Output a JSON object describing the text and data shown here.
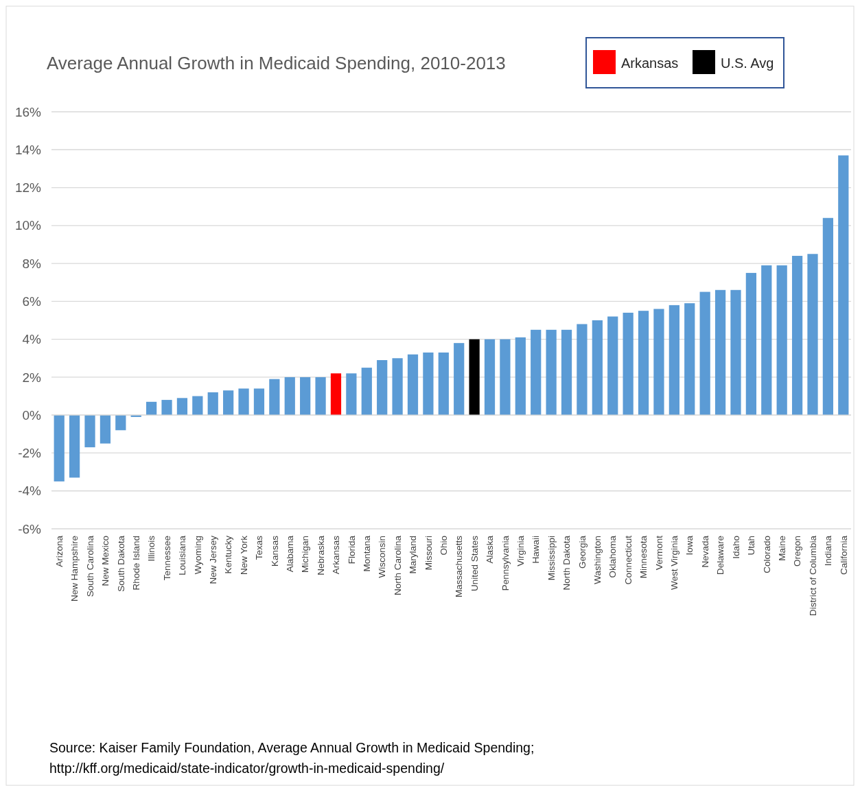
{
  "chart_data": {
    "type": "bar",
    "title": "Average Annual Growth in Medicaid Spending, 2010-2013",
    "categories": [
      "Arizona",
      "New Hampshire",
      "South Carolina",
      "New Mexico",
      "South Dakota",
      "Rhode Island",
      "Illinois",
      "Tennessee",
      "Louisiana",
      "Wyoming",
      "New Jersey",
      "Kentucky",
      "New York",
      "Texas",
      "Kansas",
      "Alabama",
      "Michigan",
      "Nebraska",
      "Arkansas",
      "Florida",
      "Montana",
      "Wisconsin",
      "North Carolina",
      "Maryland",
      "Missouri",
      "Ohio",
      "Massachusetts",
      "United States",
      "Alaska",
      "Pennsylvania",
      "Virginia",
      "Hawaii",
      "Mississippi",
      "North Dakota",
      "Georgia",
      "Washington",
      "Oklahoma",
      "Connecticut",
      "Minnesota",
      "Vermont",
      "West Virginia",
      "Iowa",
      "Nevada",
      "Delaware",
      "Idaho",
      "Utah",
      "Colorado",
      "Maine",
      "Oregon",
      "District of Columbia",
      "Indiana",
      "California"
    ],
    "series": [
      {
        "color": "#5b9bd5",
        "values": [
          -3.5,
          -3.3,
          -1.7,
          -1.5,
          -0.8,
          -0.1,
          0.7,
          0.8,
          0.9,
          1.0,
          1.2,
          1.3,
          1.4,
          1.4,
          1.9,
          2.0,
          2.0,
          2.0,
          null,
          2.2,
          2.5,
          2.9,
          3.0,
          3.2,
          3.3,
          3.3,
          3.8,
          null,
          4.0,
          4.0,
          4.1,
          4.5,
          4.5,
          4.5,
          4.8,
          5.0,
          5.2,
          5.4,
          5.5,
          5.6,
          5.8,
          5.9,
          6.5,
          6.6,
          6.6,
          7.5,
          7.9,
          7.9,
          8.4,
          8.5,
          10.4,
          13.7
        ]
      },
      {
        "name": "Arkansas",
        "color": "#ff0000",
        "values": [
          null,
          null,
          null,
          null,
          null,
          null,
          null,
          null,
          null,
          null,
          null,
          null,
          null,
          null,
          null,
          null,
          null,
          null,
          2.2,
          null,
          null,
          null,
          null,
          null,
          null,
          null,
          null,
          null,
          null,
          null,
          null,
          null,
          null,
          null,
          null,
          null,
          null,
          null,
          null,
          null,
          null,
          null,
          null,
          null,
          null,
          null,
          null,
          null,
          null,
          null,
          null,
          null
        ]
      },
      {
        "name": "U.S. Avg",
        "color": "#000000",
        "values": [
          null,
          null,
          null,
          null,
          null,
          null,
          null,
          null,
          null,
          null,
          null,
          null,
          null,
          null,
          null,
          null,
          null,
          null,
          null,
          null,
          null,
          null,
          null,
          null,
          null,
          null,
          null,
          4.0,
          null,
          null,
          null,
          null,
          null,
          null,
          null,
          null,
          null,
          null,
          null,
          null,
          null,
          null,
          null,
          null,
          null,
          null,
          null,
          null,
          null,
          null,
          null,
          null
        ]
      }
    ],
    "ylim": [
      -6,
      16
    ],
    "yticks": [
      {
        "value": -6,
        "label": "-6%"
      },
      {
        "value": -4,
        "label": "-4%"
      },
      {
        "value": -2,
        "label": "-2%"
      },
      {
        "value": 0,
        "label": "0%"
      },
      {
        "value": 2,
        "label": "2%"
      },
      {
        "value": 4,
        "label": "4%"
      },
      {
        "value": 6,
        "label": "6%"
      },
      {
        "value": 8,
        "label": "8%"
      },
      {
        "value": 10,
        "label": "10%"
      },
      {
        "value": 12,
        "label": "12%"
      },
      {
        "value": 14,
        "label": "14%"
      },
      {
        "value": 16,
        "label": "16%"
      }
    ],
    "grid": "y",
    "legend": "top right",
    "annotations": [
      "Source: Kaiser Family Foundation, Average Annual Growth in Medicaid Spending;",
      "http://kff.org/medicaid/state-indicator/growth-in-medicaid-spending/"
    ]
  }
}
